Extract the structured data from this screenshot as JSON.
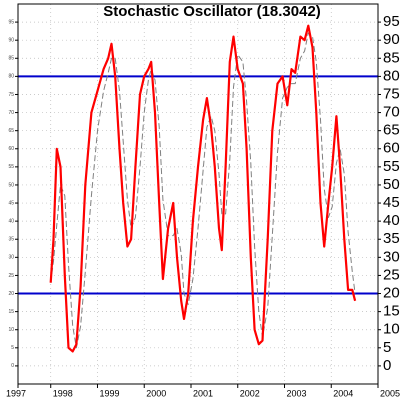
{
  "chart_data": {
    "type": "line",
    "title": "Stochastic Oscillator (18.3042)",
    "x": [
      1998.0,
      1998.06,
      1998.13,
      1998.21,
      1998.3,
      1998.38,
      1998.47,
      1998.55,
      1998.64,
      1998.74,
      1998.87,
      1999.0,
      1999.13,
      1999.23,
      1999.3,
      1999.38,
      1999.47,
      1999.55,
      1999.64,
      1999.72,
      1999.81,
      1999.91,
      2000.0,
      2000.09,
      2000.15,
      2000.23,
      2000.32,
      2000.4,
      2000.51,
      2000.62,
      2000.7,
      2000.79,
      2000.85,
      2000.94,
      2001.04,
      2001.15,
      2001.26,
      2001.34,
      2001.43,
      2001.51,
      2001.6,
      2001.66,
      2001.74,
      2001.83,
      2001.91,
      2002.0,
      2002.11,
      2002.19,
      2002.28,
      2002.36,
      2002.45,
      2002.53,
      2002.64,
      2002.74,
      2002.85,
      2002.96,
      2003.06,
      2003.15,
      2003.23,
      2003.34,
      2003.43,
      2003.51,
      2003.6,
      2003.68,
      2003.77,
      2003.85,
      2003.94,
      2004.02,
      2004.11,
      2004.19,
      2004.28,
      2004.36,
      2004.45,
      2004.51
    ],
    "series": [
      {
        "color": "#ff0000",
        "dashed": false,
        "values": [
          23,
          35,
          60,
          55,
          25,
          5,
          4,
          6,
          22,
          50,
          70,
          76,
          82,
          85,
          89,
          80,
          60,
          45,
          33,
          35,
          55,
          75,
          80,
          82,
          84,
          70,
          45,
          24,
          38,
          45,
          30,
          18,
          13,
          20,
          40,
          55,
          68,
          74,
          66,
          55,
          38,
          32,
          55,
          84,
          91,
          82,
          78,
          60,
          30,
          10,
          6,
          7,
          35,
          65,
          78,
          80,
          72,
          82,
          81,
          91,
          90,
          94,
          88,
          70,
          45,
          33,
          45,
          55,
          69,
          55,
          35,
          21,
          21,
          18
        ]
      },
      {
        "color": "#808080",
        "dashed": true,
        "values": [
          23,
          29,
          39,
          50,
          47,
          28,
          11,
          5,
          11,
          26,
          47,
          65,
          76,
          81,
          85,
          85,
          76,
          62,
          46,
          38,
          41,
          55,
          70,
          79,
          82,
          79,
          66,
          46,
          36,
          36,
          38,
          31,
          20,
          17,
          24,
          38,
          54,
          66,
          69,
          65,
          53,
          42,
          42,
          57,
          77,
          86,
          84,
          73,
          56,
          33,
          15,
          8,
          16,
          36,
          59,
          74,
          77,
          78,
          78,
          85,
          87,
          92,
          91,
          84,
          68,
          49,
          41,
          44,
          56,
          60,
          53,
          37,
          26,
          20
        ]
      }
    ],
    "hlines": [
      80,
      20
    ],
    "hline_color": "#0000cc",
    "xlim": [
      1997.3,
      2005.0
    ],
    "xticks": [
      1997,
      1998,
      1999,
      2000,
      2001,
      2002,
      2003,
      2004,
      2005
    ],
    "ylim": [
      -5,
      100
    ],
    "yticks": [
      0,
      5,
      10,
      15,
      20,
      25,
      30,
      35,
      40,
      45,
      50,
      55,
      60,
      65,
      70,
      75,
      80,
      85,
      90,
      95
    ],
    "grid": true
  }
}
